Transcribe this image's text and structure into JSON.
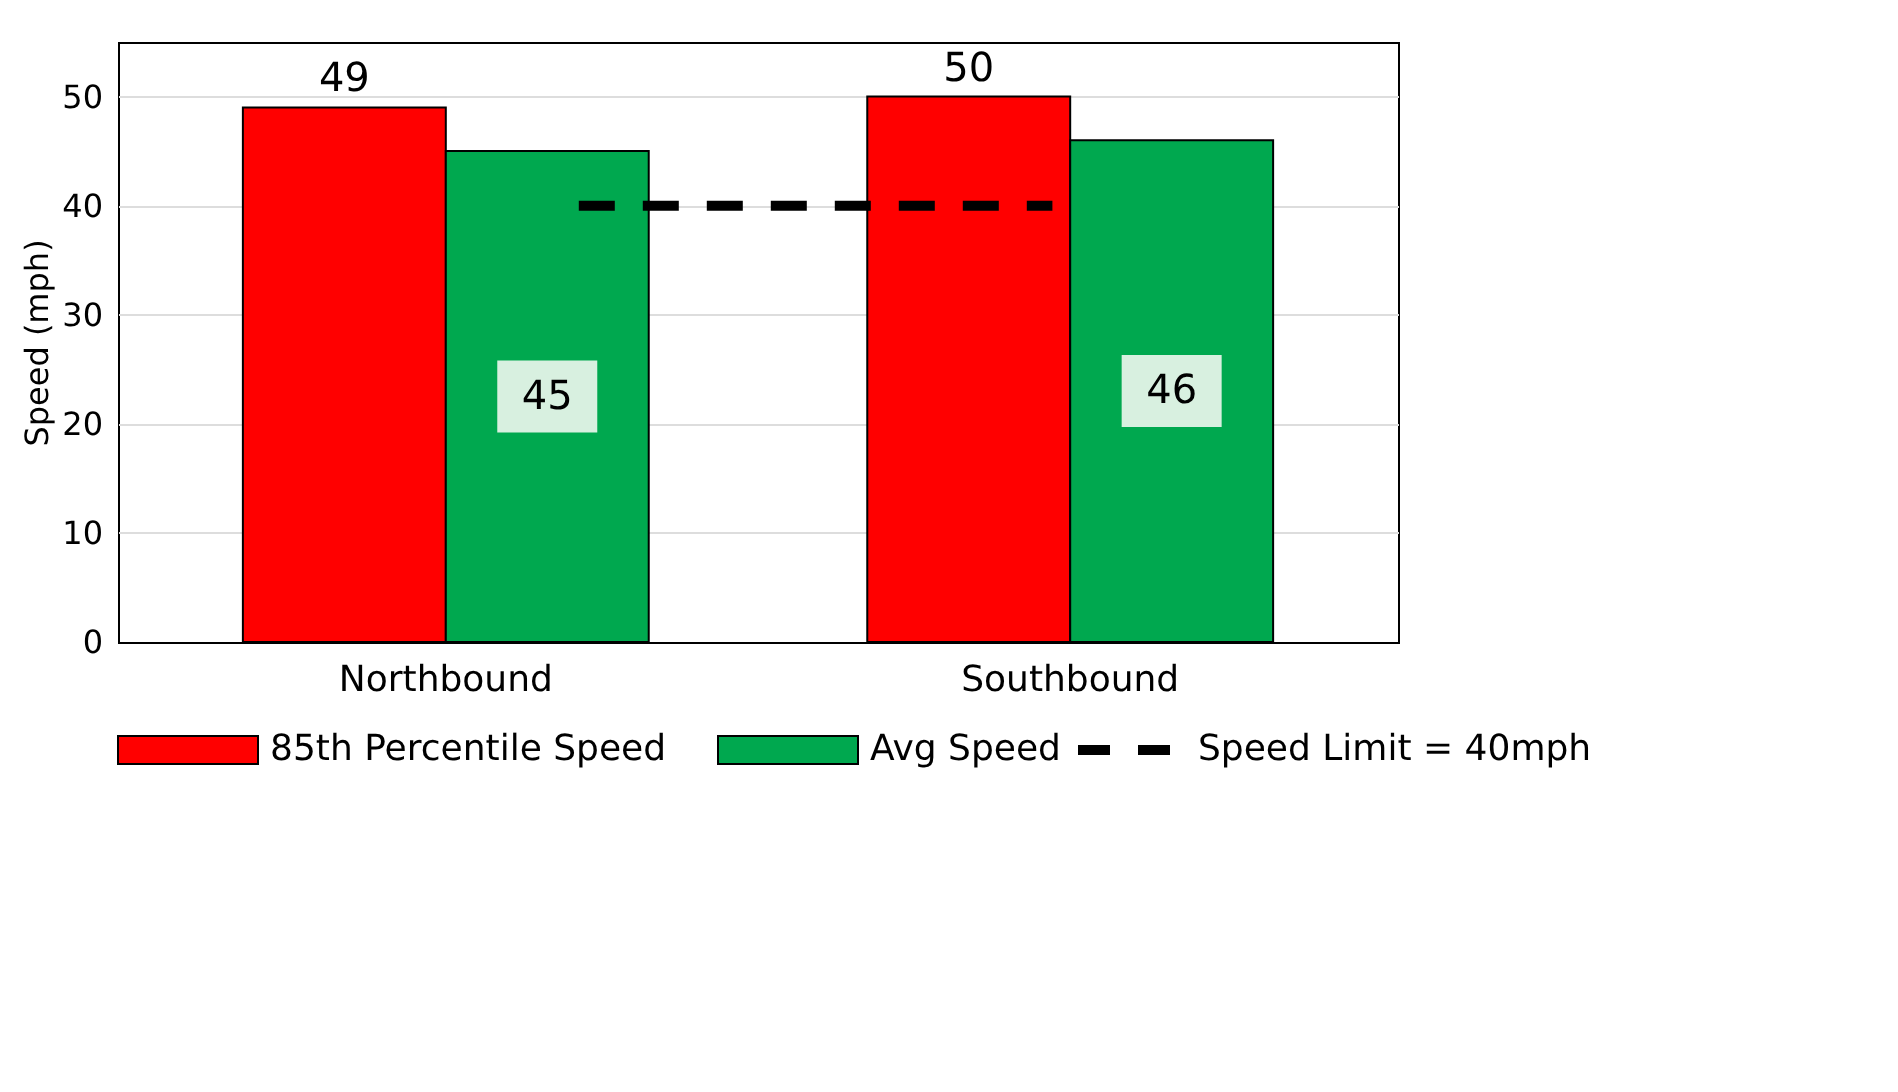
{
  "chart_data": {
    "type": "bar",
    "ylabel": "Speed (mph)",
    "categories": [
      "Northbound",
      "Southbound"
    ],
    "series": [
      {
        "name": "85th Percentile Speed",
        "color": "#ff0000",
        "values": [
          49,
          50
        ]
      },
      {
        "name": "Avg Speed",
        "color": "#00a84f",
        "values": [
          45,
          46
        ]
      }
    ],
    "data_labels": true,
    "ylim": [
      0,
      55
    ],
    "yticks": [
      0,
      10,
      20,
      30,
      40,
      50
    ],
    "grid": "y",
    "legend": "bottom",
    "ref_lines": [
      {
        "axis": "y",
        "value": 40,
        "label": "Speed Limit = 40mph",
        "color": "#000000",
        "line_style": "dashed"
      }
    ]
  }
}
